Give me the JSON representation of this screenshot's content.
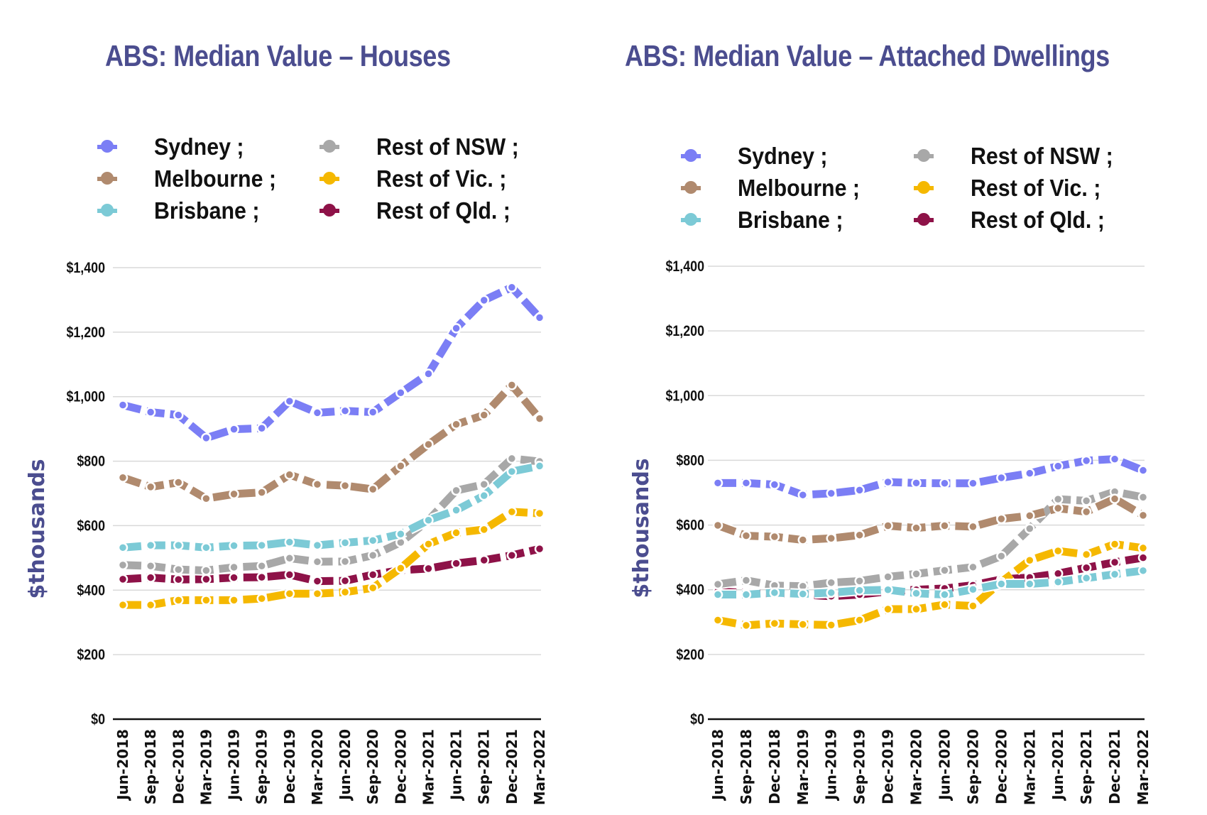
{
  "chart_data": [
    {
      "type": "line",
      "title": "ABS: Median Value – Houses",
      "xlabel": "",
      "ylabel": "$thousands",
      "ylim": [
        0,
        1400
      ],
      "yticks": [
        0,
        200,
        400,
        600,
        800,
        1000,
        1200,
        1400
      ],
      "ytick_labels": [
        "$0",
        "$200",
        "$400",
        "$600",
        "$800",
        "$1,000",
        "$1,200",
        "$1,400"
      ],
      "grid": true,
      "legend_position": "top",
      "categories": [
        "Jun-2018",
        "Sep-2018",
        "Dec-2018",
        "Mar-2019",
        "Jun-2019",
        "Sep-2019",
        "Dec-2019",
        "Mar-2020",
        "Jun-2020",
        "Sep-2020",
        "Dec-2020",
        "Mar-2021",
        "Jun-2021",
        "Sep-2021",
        "Dec-2021",
        "Mar-2022"
      ],
      "series": [
        {
          "name": "Sydney",
          "legend_label": "Sydney ;",
          "color": "#7b7ef5",
          "values": [
            974,
            952,
            943,
            872,
            899,
            902,
            986,
            950,
            956,
            952,
            1012,
            1071,
            1212,
            1299,
            1339,
            1245
          ]
        },
        {
          "name": "Melbourne",
          "legend_label": "Melbourne ;",
          "color": "#b08a6e",
          "values": [
            749,
            720,
            734,
            684,
            698,
            703,
            758,
            728,
            724,
            713,
            785,
            852,
            914,
            943,
            1036,
            932
          ]
        },
        {
          "name": "Brisbane",
          "legend_label": "Brisbane ;",
          "color": "#7ccad6",
          "values": [
            532,
            539,
            539,
            532,
            538,
            539,
            549,
            539,
            547,
            554,
            574,
            617,
            648,
            693,
            768,
            785
          ]
        },
        {
          "name": "Rest of NSW",
          "legend_label": "Rest of NSW ;",
          "color": "#a8a8a8",
          "values": [
            478,
            475,
            464,
            461,
            471,
            475,
            499,
            488,
            489,
            508,
            548,
            617,
            709,
            728,
            808,
            799
          ]
        },
        {
          "name": "Rest of Vic.",
          "legend_label": "Rest of Vic. ;",
          "color": "#f5b800",
          "values": [
            354,
            354,
            369,
            369,
            369,
            374,
            389,
            389,
            394,
            407,
            468,
            543,
            578,
            588,
            643,
            638
          ]
        },
        {
          "name": "Rest of Qld.",
          "legend_label": "Rest of Qld. ;",
          "color": "#8e1248",
          "values": [
            434,
            439,
            433,
            434,
            439,
            440,
            448,
            428,
            429,
            448,
            462,
            467,
            483,
            493,
            508,
            528
          ]
        }
      ]
    },
    {
      "type": "line",
      "title": "ABS: Median Value – Attached Dwellings",
      "xlabel": "",
      "ylabel": "$thousands",
      "ylim": [
        0,
        1400
      ],
      "yticks": [
        0,
        200,
        400,
        600,
        800,
        1000,
        1200,
        1400
      ],
      "ytick_labels": [
        "$0",
        "$200",
        "$400",
        "$600",
        "$800",
        "$1,000",
        "$1,200",
        "$1,400"
      ],
      "grid": true,
      "legend_position": "top",
      "categories": [
        "Jun-2018",
        "Sep-2018",
        "Dec-2018",
        "Mar-2019",
        "Jun-2019",
        "Sep-2019",
        "Dec-2019",
        "Mar-2020",
        "Jun-2020",
        "Sep-2020",
        "Dec-2020",
        "Mar-2021",
        "Jun-2021",
        "Sep-2021",
        "Dec-2021",
        "Mar-2022"
      ],
      "series": [
        {
          "name": "Sydney",
          "legend_label": "Sydney ;",
          "color": "#7b7ef5",
          "values": [
            730,
            730,
            725,
            693,
            698,
            708,
            733,
            730,
            729,
            729,
            746,
            760,
            782,
            799,
            804,
            769
          ]
        },
        {
          "name": "Melbourne",
          "legend_label": "Melbourne ;",
          "color": "#b08a6e",
          "values": [
            599,
            567,
            564,
            554,
            559,
            569,
            598,
            591,
            598,
            595,
            619,
            629,
            652,
            641,
            681,
            630
          ]
        },
        {
          "name": "Brisbane",
          "legend_label": "Brisbane ;",
          "color": "#7ccad6",
          "values": [
            385,
            385,
            391,
            387,
            391,
            398,
            400,
            389,
            385,
            401,
            418,
            418,
            424,
            436,
            448,
            459
          ]
        },
        {
          "name": "Rest of NSW",
          "legend_label": "Rest of NSW ;",
          "color": "#a8a8a8",
          "values": [
            417,
            429,
            413,
            411,
            422,
            427,
            440,
            449,
            460,
            470,
            504,
            589,
            680,
            675,
            703,
            686
          ]
        },
        {
          "name": "Rest of Vic.",
          "legend_label": "Rest of Vic. ;",
          "color": "#f5b800",
          "values": [
            306,
            290,
            296,
            293,
            291,
            306,
            340,
            340,
            354,
            350,
            424,
            491,
            520,
            509,
            541,
            529
          ]
        },
        {
          "name": "Rest of Qld.",
          "legend_label": "Rest of Qld. ;",
          "color": "#8e1248",
          "values": [
            395,
            390,
            388,
            385,
            380,
            385,
            395,
            400,
            404,
            414,
            432,
            438,
            450,
            468,
            485,
            499
          ]
        }
      ]
    }
  ]
}
